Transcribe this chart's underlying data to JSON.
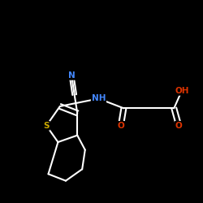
{
  "background_color": "#000000",
  "bond_color": "#ffffff",
  "atom_colors": {
    "N": "#4488ff",
    "S": "#ccaa00",
    "O": "#dd3300",
    "C": "#ffffff"
  },
  "lw": 1.5,
  "fs": 7.0
}
